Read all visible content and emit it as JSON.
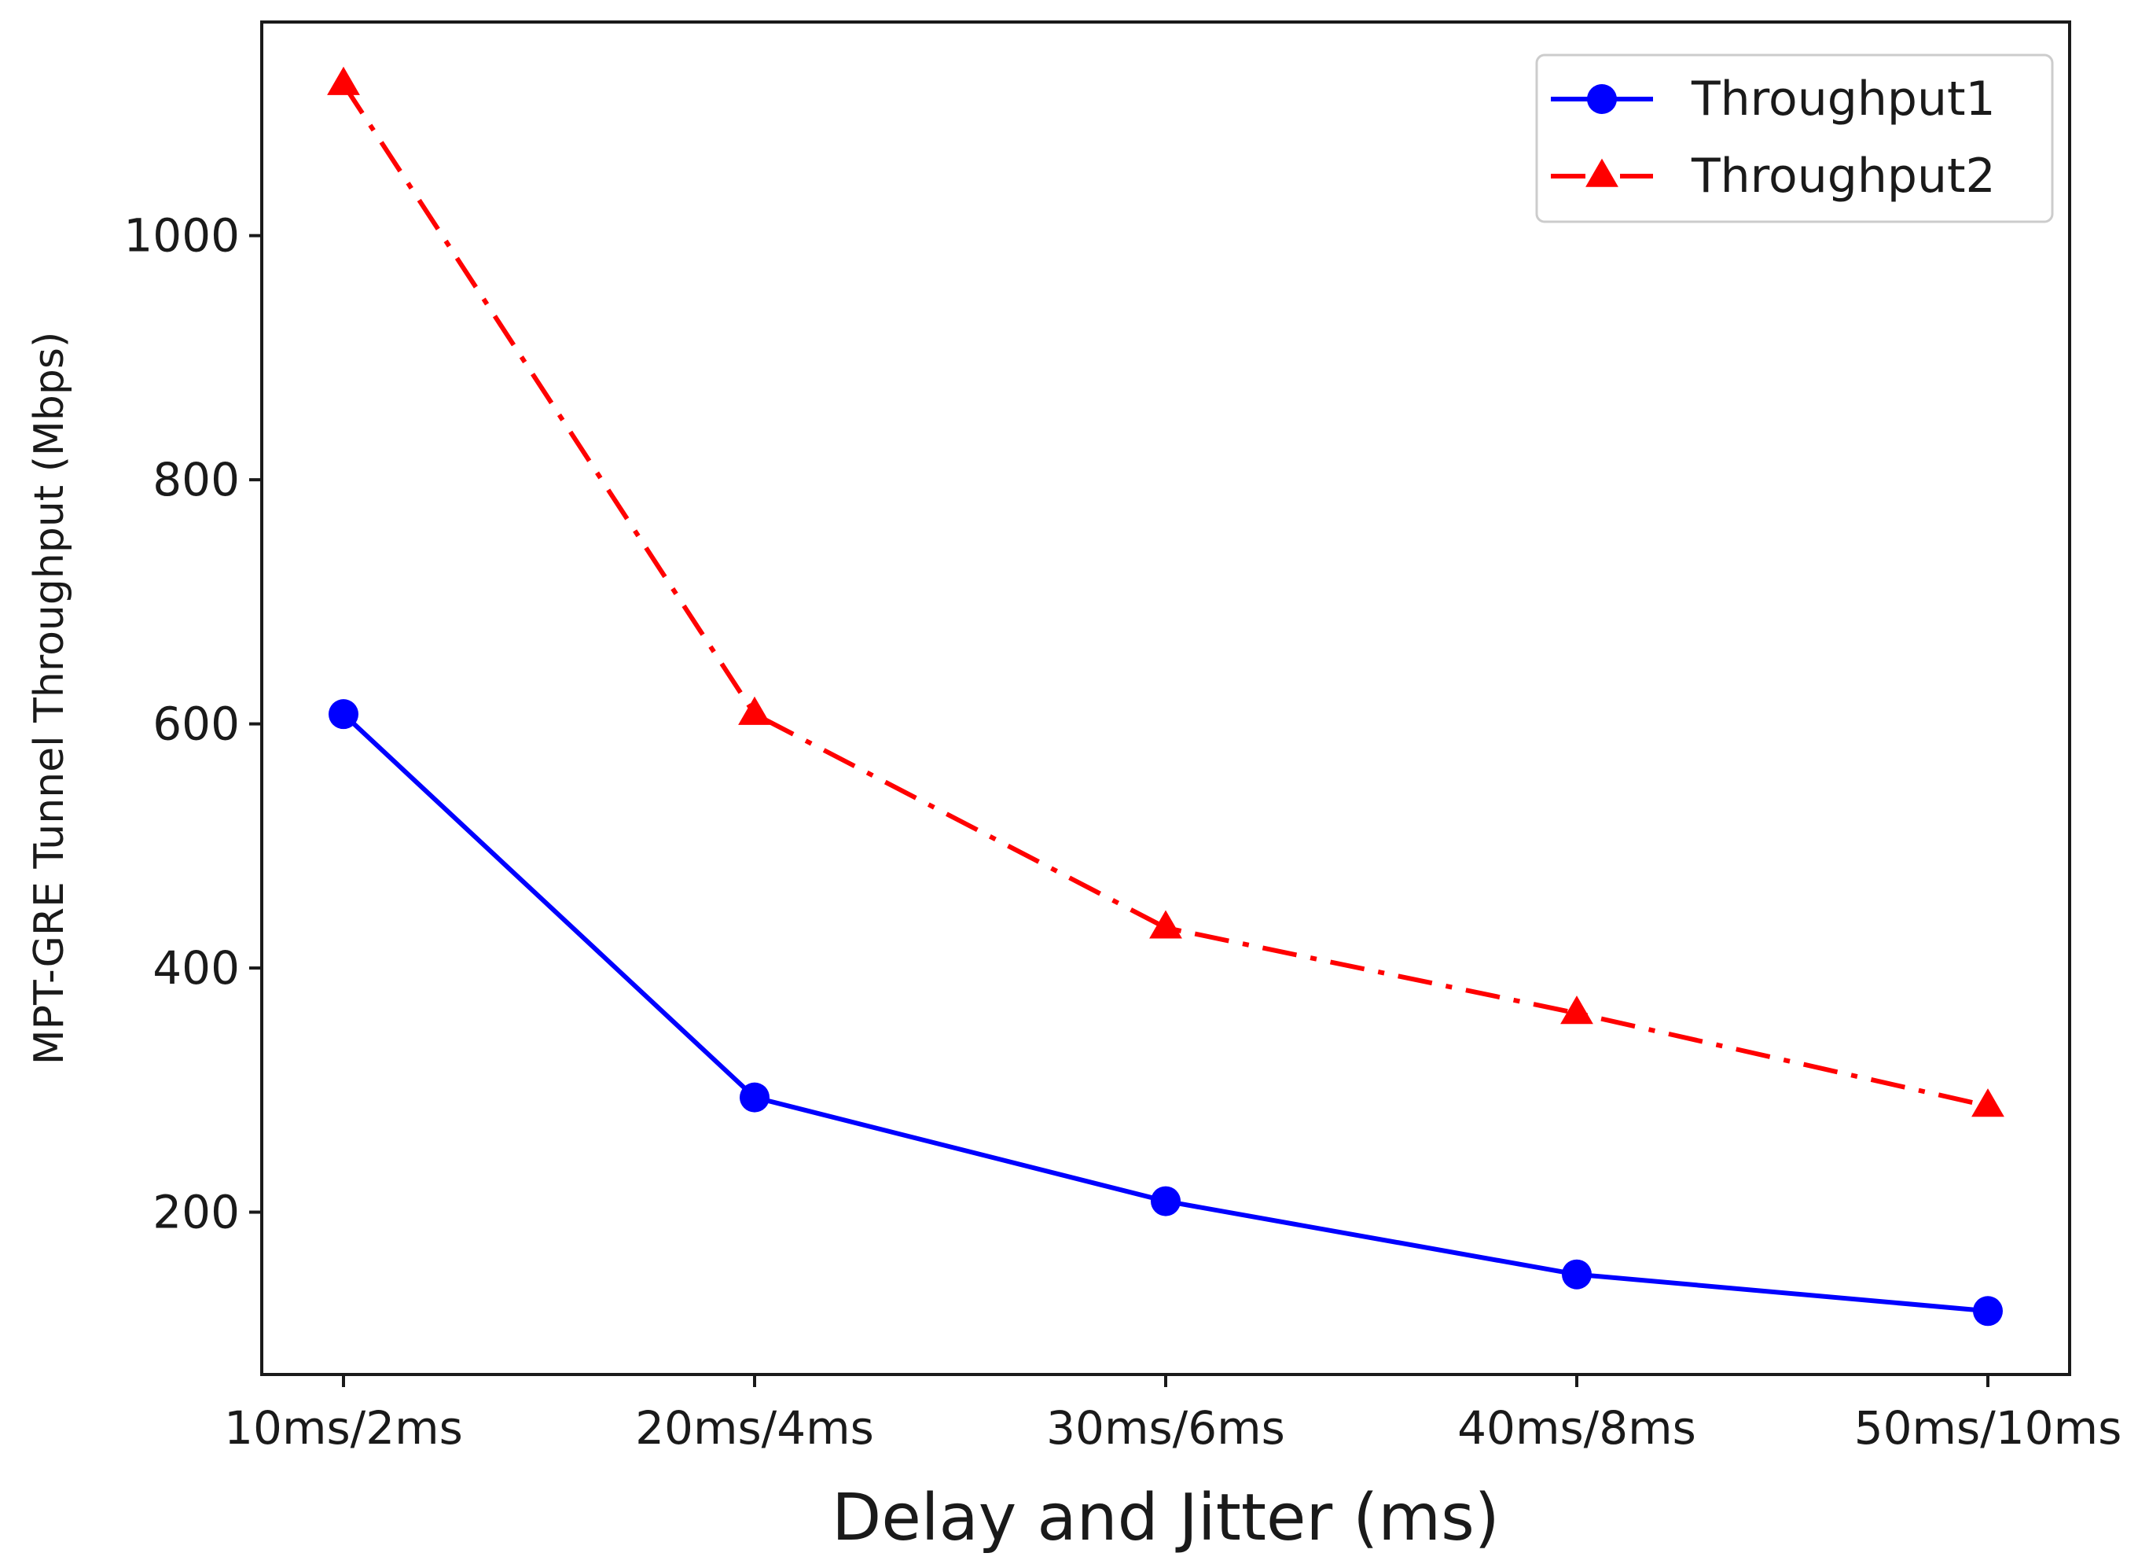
{
  "chart_data": {
    "type": "line",
    "title": "",
    "xlabel": "Delay and Jitter (ms)",
    "ylabel": "MPT-GRE Tunnel Throughput (Mbps)",
    "categories": [
      "10ms/2ms",
      "20ms/4ms",
      "30ms/6ms",
      "40ms/8ms",
      "50ms/10ms"
    ],
    "ylim": [
      67,
      1175
    ],
    "yticks": [
      200,
      400,
      600,
      800,
      1000
    ],
    "grid": false,
    "legend_position": "top-right",
    "series": [
      {
        "name": "Throughput1",
        "values": [
          608,
          294,
          209,
          149,
          119
        ],
        "color": "#0000ff",
        "line_style": "solid",
        "marker": "circle"
      },
      {
        "name": "Throughput2",
        "values": [
          1124,
          608,
          433,
          363,
          287
        ],
        "color": "#ff0000",
        "line_style": "dashdot",
        "marker": "triangle"
      }
    ]
  }
}
